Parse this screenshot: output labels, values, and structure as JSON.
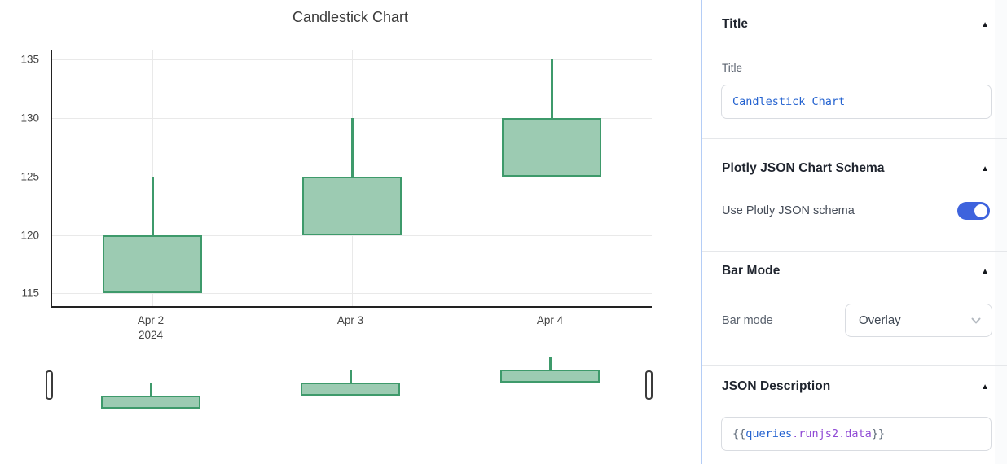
{
  "colors": {
    "accent": "#3e63dd",
    "panel_border": "#b4cdf6",
    "divider": "#e5e7ea",
    "input_border": "#d9dce1",
    "header_text": "#1f242e",
    "label_text": "#59616d",
    "value_text": "#3f4854",
    "code_blue": "#2563d0",
    "code_purple": "#8f49d4",
    "code_gray": "#5f6b7a",
    "candle_line": "#3e9a6b",
    "candle_fill": "#9ccbb2",
    "grid_line": "#e9e9e9",
    "axis_line": "#222222",
    "chart_text": "#444444"
  },
  "icons": {
    "collapse": "▲"
  },
  "chart": {
    "title": "Candlestick Chart",
    "yticks": [
      135,
      130,
      125,
      120,
      115
    ],
    "xticks": [
      {
        "label": "Apr 2",
        "sub": "2024"
      },
      {
        "label": "Apr 3",
        "sub": ""
      },
      {
        "label": "Apr 4",
        "sub": ""
      }
    ]
  },
  "chart_data": {
    "type": "candlestick",
    "x": [
      "Apr 2, 2024",
      "Apr 3, 2024",
      "Apr 4, 2024"
    ],
    "open": [
      115,
      120,
      125
    ],
    "high": [
      125,
      130,
      135
    ],
    "low": [
      115,
      120,
      125
    ],
    "close": [
      120,
      125,
      130
    ],
    "title": "Candlestick Chart",
    "ylabel": "",
    "xlabel": "",
    "ylim": [
      113.8,
      135.8
    ],
    "grid": true,
    "legend": false,
    "rangeslider": true,
    "increasing_color": "#3e9a6b"
  },
  "panel": {
    "title_section": {
      "header": "Title",
      "field_label": "Title",
      "value": "Candlestick Chart"
    },
    "plotly_section": {
      "header": "Plotly JSON Chart Schema",
      "toggle_label": "Use Plotly JSON schema",
      "toggle_on": true
    },
    "barmode_section": {
      "header": "Bar Mode",
      "field_label": "Bar mode",
      "selected": "Overlay"
    },
    "json_section": {
      "header": "JSON Description",
      "tokens": [
        {
          "text": "{{",
          "color": "gray"
        },
        {
          "text": "queries",
          "color": "blue"
        },
        {
          "text": ".runjs2.data",
          "color": "purple"
        },
        {
          "text": "}}",
          "color": "gray"
        }
      ]
    }
  }
}
